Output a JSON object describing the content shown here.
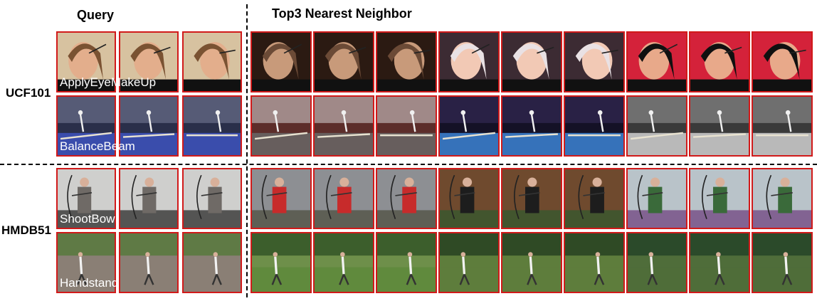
{
  "headers": {
    "query": "Query",
    "neighbors": "Top3 Nearest Neighbor"
  },
  "datasets": [
    {
      "name": "UCF101",
      "rows": [
        {
          "class": "ApplyEyeMakeUp",
          "scene": "makeup",
          "query_palette": [
            "#d7c2a0",
            "#7a5232",
            "#e3ae8c"
          ],
          "neighbor_groups": [
            {
              "palette": [
                "#2b1a12",
                "#6b4a36",
                "#c89a7a"
              ]
            },
            {
              "palette": [
                "#3c2b33",
                "#e9e1e4",
                "#f2c9b5"
              ]
            },
            {
              "palette": [
                "#d4223a",
                "#101010",
                "#e8a98a"
              ]
            }
          ]
        },
        {
          "class": "BalanceBeam",
          "scene": "gym",
          "query_palette": [
            "#2a2f4a",
            "#7a7f9a",
            "#3f55c4"
          ],
          "neighbor_groups": [
            {
              "palette": [
                "#5c2d2a",
                "#d9d5d5",
                "#6a6a6a"
              ]
            },
            {
              "palette": [
                "#141126",
                "#3b2f5e",
                "#3f8be0"
              ]
            },
            {
              "palette": [
                "#3a3a3a",
                "#9a9a9a",
                "#d9d9d9"
              ]
            }
          ]
        }
      ]
    },
    {
      "name": "HMDB51",
      "rows": [
        {
          "class": "ShootBow",
          "scene": "bow",
          "query_palette": [
            "#cfcfcd",
            "#6f6a66",
            "#202020"
          ],
          "neighbor_groups": [
            {
              "palette": [
                "#8d8f93",
                "#c72b2b",
                "#4a4a3a"
              ]
            },
            {
              "palette": [
                "#6f4a2e",
                "#1d1d1d",
                "#2f5a2f"
              ]
            },
            {
              "palette": [
                "#b9c3c9",
                "#3a6a3a",
                "#6b3a7a"
              ]
            }
          ]
        },
        {
          "class": "Handstand",
          "scene": "yard",
          "query_palette": [
            "#5f7a45",
            "#8a7f75",
            "#3d4d2e"
          ],
          "neighbor_groups": [
            {
              "palette": [
                "#3c5e2c",
                "#6e8f4a",
                "#2a2a2a"
              ]
            },
            {
              "palette": [
                "#2f4a25",
                "#5e7d3c",
                "#e0e0e0"
              ]
            },
            {
              "palette": [
                "#2b4a2a",
                "#4f6d3a",
                "#5a6fb0"
              ]
            }
          ]
        }
      ]
    }
  ]
}
